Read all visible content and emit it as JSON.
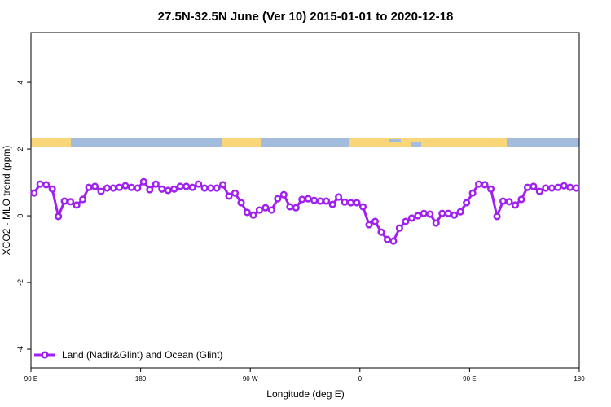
{
  "chart_data": {
    "type": "line",
    "title": "27.5N-32.5N June (Ver 10)   2015-01-01 to 2020-12-18",
    "x_label": "Longitude (deg E)",
    "y_label": "XCO2 - MLO trend (ppm)",
    "x": [
      92.5,
      97.5,
      102.5,
      107.5,
      112.5,
      117.5,
      122.5,
      127.5,
      132.5,
      137.5,
      142.5,
      147.5,
      152.5,
      157.5,
      162.5,
      167.5,
      172.5,
      177.5,
      182.5,
      187.5,
      192.5,
      197.5,
      202.5,
      207.5,
      212.5,
      217.5,
      222.5,
      227.5,
      232.5,
      237.5,
      242.5,
      247.5,
      252.5,
      257.5,
      262.5,
      267.5,
      272.5,
      277.5,
      282.5,
      287.5,
      292.5,
      297.5,
      302.5,
      307.5,
      312.5,
      317.5,
      322.5,
      327.5,
      332.5,
      337.5,
      342.5,
      347.5,
      352.5,
      357.5,
      362.5,
      367.5,
      372.5,
      377.5,
      382.5,
      387.5,
      392.5,
      397.5,
      402.5,
      407.5,
      412.5,
      417.5,
      422.5,
      427.5,
      432.5,
      437.5,
      442.5,
      447.5,
      452.5,
      457.5,
      462.5,
      467.5,
      472.5,
      477.5,
      482.5,
      487.5,
      492.5,
      497.5,
      502.5,
      507.5,
      512.5,
      517.5,
      522.5,
      527.5,
      532.5,
      537.5
    ],
    "series": [
      {
        "name": "Land (Nadir&Glint) and Ocean (Glint)",
        "color": "#a020f0",
        "values": [
          0.68,
          0.95,
          0.93,
          0.8,
          -0.02,
          0.44,
          0.42,
          0.32,
          0.49,
          0.85,
          0.88,
          0.73,
          0.83,
          0.83,
          0.85,
          0.9,
          0.85,
          0.83,
          1.02,
          0.78,
          0.95,
          0.8,
          0.76,
          0.8,
          0.88,
          0.88,
          0.85,
          0.95,
          0.83,
          0.83,
          0.83,
          0.93,
          0.59,
          0.68,
          0.39,
          0.1,
          0.02,
          0.17,
          0.24,
          0.17,
          0.51,
          0.63,
          0.27,
          0.24,
          0.49,
          0.51,
          0.46,
          0.44,
          0.44,
          0.34,
          0.56,
          0.41,
          0.39,
          0.39,
          0.27,
          -0.27,
          -0.17,
          -0.49,
          -0.71,
          -0.76,
          -0.37,
          -0.17,
          -0.07,
          0,
          0.07,
          0.05,
          -0.22,
          0.07,
          0.07,
          0.02,
          0.12,
          0.39,
          0.68,
          0.95,
          0.93,
          0.8,
          -0.02,
          0.44,
          0.42,
          0.32,
          0.49,
          0.85,
          0.88,
          0.73,
          0.83,
          0.83,
          0.85,
          0.9,
          0.85,
          0.83
        ]
      }
    ],
    "xlim": [
      90,
      540
    ],
    "xticks": [
      {
        "value": 90,
        "label": "90 E"
      },
      180,
      {
        "value": 270,
        "label": "90 W"
      },
      {
        "value": 360,
        "label": "0"
      },
      {
        "value": 450,
        "label": "90 E"
      },
      {
        "value": 540,
        "label": "180"
      }
    ],
    "ylim": [
      -4.56,
      5.49
    ],
    "yticks": [
      -4,
      -2,
      0,
      2,
      4
    ],
    "legend": "bottom left"
  }
}
